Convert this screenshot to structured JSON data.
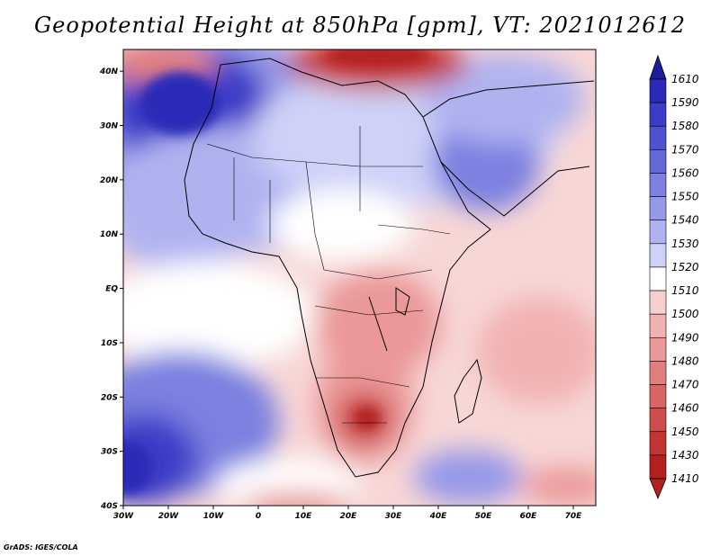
{
  "title": "Geopotential Height at 850hPa [gpm], VT: 2021012612",
  "credit": "GrADS: IGES/COLA",
  "chart_data": {
    "type": "heatmap",
    "variable": "Geopotential Height",
    "level": "850hPa",
    "units": "gpm",
    "valid_time": "2021012612",
    "lon_range": [
      -30,
      75
    ],
    "lat_range": [
      -40,
      44
    ],
    "x_ticks": [
      "30W",
      "20W",
      "10W",
      "0",
      "10E",
      "20E",
      "30E",
      "40E",
      "50E",
      "60E",
      "70E"
    ],
    "y_ticks": [
      "40N",
      "30N",
      "20N",
      "10N",
      "EQ",
      "10S",
      "20S",
      "30S",
      "40S"
    ],
    "colorbar": {
      "labels": [
        "1610",
        "1590",
        "1580",
        "1570",
        "1560",
        "1550",
        "1540",
        "1530",
        "1520",
        "1510",
        "1500",
        "1490",
        "1480",
        "1470",
        "1460",
        "1450",
        "1430",
        "1410"
      ],
      "colors": [
        "#1b1d9a",
        "#2b2ab8",
        "#3c3cc8",
        "#4f52d0",
        "#6468d8",
        "#7c80e0",
        "#9698e8",
        "#b0b2f0",
        "#cfd1f7",
        "#ffffff",
        "#f7cfcf",
        "#f2b2b2",
        "#ea9898",
        "#e27e7e",
        "#d96464",
        "#d04c4c",
        "#c53434",
        "#b22020"
      ]
    }
  }
}
